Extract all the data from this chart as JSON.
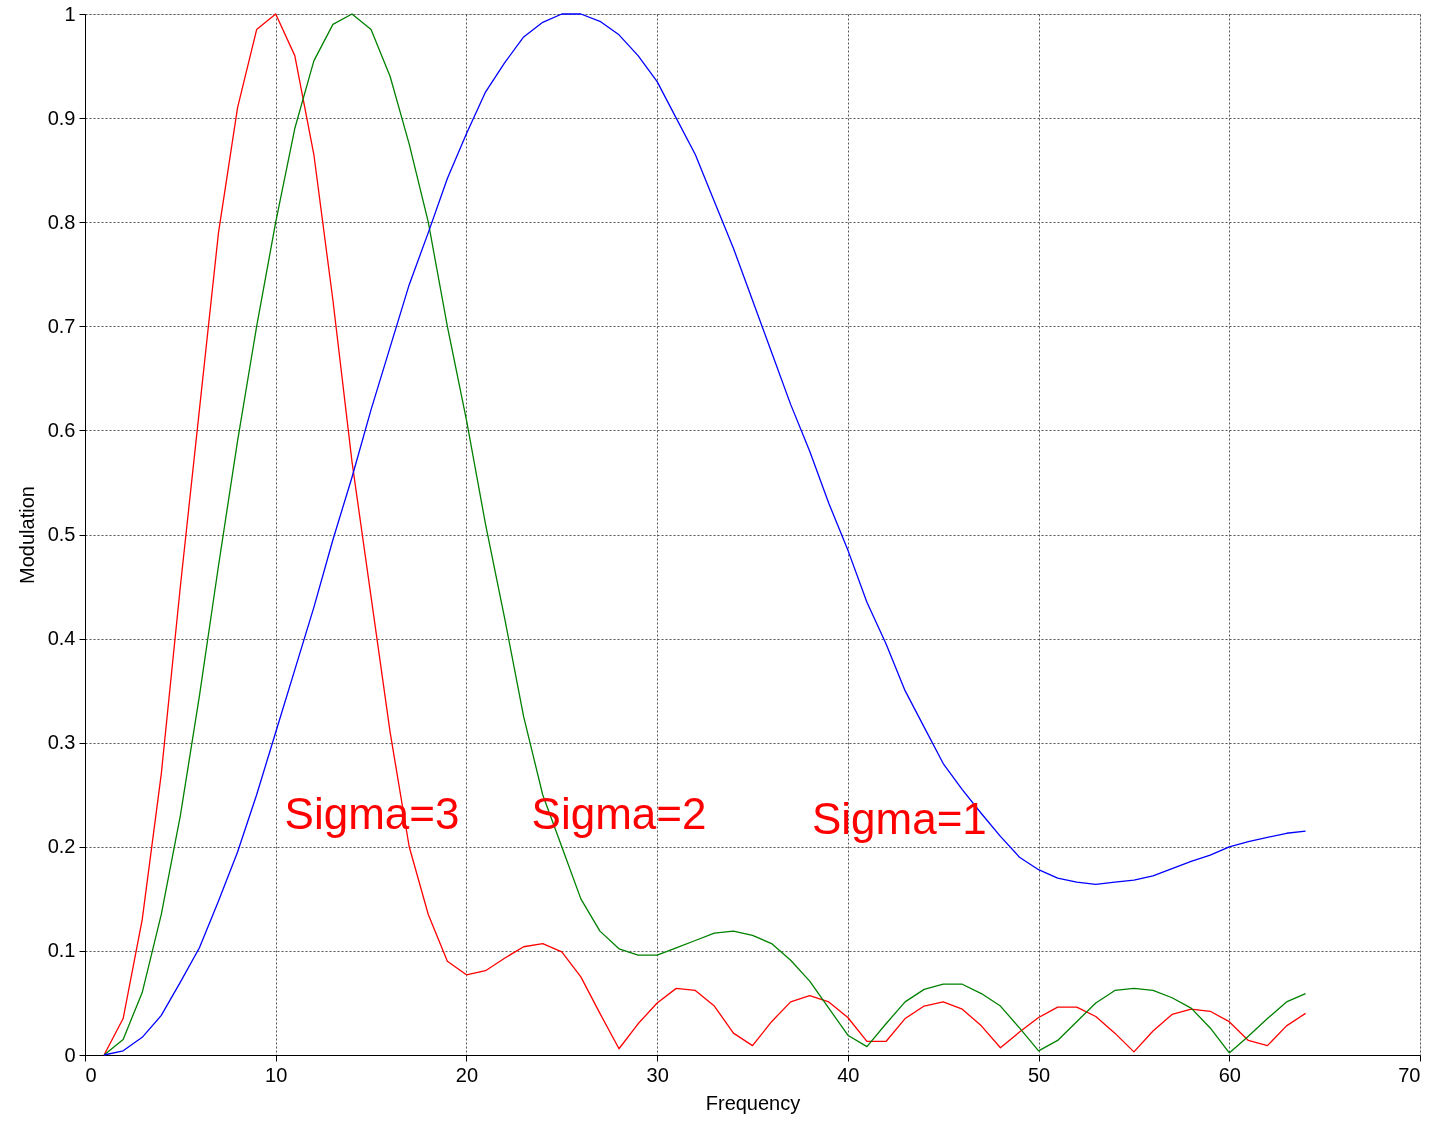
{
  "chart_data": {
    "type": "line",
    "xlabel": "Frequency",
    "ylabel": "Modulation",
    "x": [
      1,
      2,
      3,
      4,
      5,
      6,
      7,
      8,
      9,
      10,
      11,
      12,
      13,
      14,
      15,
      16,
      17,
      18,
      19,
      20,
      21,
      22,
      23,
      24,
      25,
      26,
      27,
      28,
      29,
      30,
      31,
      32,
      33,
      34,
      35,
      36,
      37,
      38,
      39,
      40,
      41,
      42,
      43,
      44,
      45,
      46,
      47,
      48,
      49,
      50,
      51,
      52,
      53,
      54,
      55,
      56,
      57,
      58,
      59,
      60,
      61,
      62,
      63,
      64
    ],
    "series": [
      {
        "color": "#ff0000",
        "values": [
          0,
          0.035,
          0.13,
          0.27,
          0.45,
          0.62,
          0.79,
          0.91,
          0.985,
          1.0,
          0.96,
          0.865,
          0.725,
          0.57,
          0.44,
          0.31,
          0.2,
          0.135,
          0.09,
          0.077,
          0.081,
          0.093,
          0.104,
          0.107,
          0.099,
          0.075,
          0.04,
          0.006,
          0.03,
          0.05,
          0.064,
          0.062,
          0.047,
          0.021,
          0.009,
          0.032,
          0.051,
          0.057,
          0.051,
          0.036,
          0.013,
          0.013,
          0.035,
          0.047,
          0.051,
          0.044,
          0.028,
          0.007,
          0.022,
          0.036,
          0.046,
          0.046,
          0.037,
          0.021,
          0.003,
          0.023,
          0.039,
          0.044,
          0.042,
          0.032,
          0.014,
          0.009,
          0.028,
          0.04
        ]
      },
      {
        "color": "#008000",
        "values": [
          0,
          0.015,
          0.06,
          0.135,
          0.23,
          0.345,
          0.47,
          0.59,
          0.7,
          0.8,
          0.89,
          0.955,
          0.99,
          1.0,
          0.985,
          0.94,
          0.875,
          0.8,
          0.7,
          0.61,
          0.51,
          0.42,
          0.325,
          0.25,
          0.2,
          0.15,
          0.119,
          0.102,
          0.096,
          0.096,
          0.103,
          0.11,
          0.117,
          0.119,
          0.115,
          0.107,
          0.091,
          0.071,
          0.045,
          0.019,
          0.008,
          0.03,
          0.051,
          0.063,
          0.068,
          0.068,
          0.059,
          0.047,
          0.026,
          0.004,
          0.014,
          0.032,
          0.05,
          0.062,
          0.064,
          0.062,
          0.055,
          0.045,
          0.026,
          0.002,
          0.018,
          0.035,
          0.051,
          0.059
        ]
      },
      {
        "color": "#0000ff",
        "values": [
          0,
          0.004,
          0.017,
          0.038,
          0.07,
          0.103,
          0.148,
          0.195,
          0.25,
          0.31,
          0.37,
          0.43,
          0.495,
          0.555,
          0.62,
          0.68,
          0.74,
          0.79,
          0.842,
          0.885,
          0.925,
          0.953,
          0.978,
          0.992,
          1.0,
          1.0,
          0.993,
          0.98,
          0.96,
          0.935,
          0.9,
          0.865,
          0.82,
          0.775,
          0.725,
          0.675,
          0.625,
          0.58,
          0.53,
          0.485,
          0.435,
          0.395,
          0.35,
          0.315,
          0.28,
          0.255,
          0.232,
          0.21,
          0.19,
          0.178,
          0.17,
          0.166,
          0.164,
          0.166,
          0.168,
          0.172,
          0.179,
          0.186,
          0.192,
          0.2,
          0.205,
          0.209,
          0.213,
          0.215
        ]
      }
    ],
    "annotations": [
      "Sigma=3",
      "Sigma=2",
      "Sigma=1"
    ],
    "xlim": [
      0,
      70
    ],
    "xticks": [
      0,
      10,
      20,
      30,
      40,
      50,
      60,
      70
    ],
    "ylim": [
      0,
      1
    ],
    "yticks": [
      0,
      0.1,
      0.2,
      0.3,
      0.4,
      0.5,
      0.6,
      0.7,
      0.8,
      0.9,
      1
    ],
    "grid": true,
    "line_style": "solid",
    "marker": "none"
  }
}
